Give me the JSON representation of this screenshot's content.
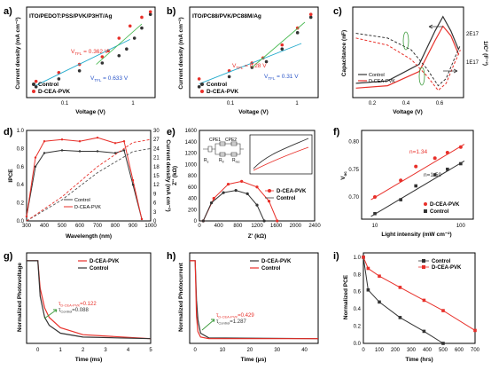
{
  "colors": {
    "control": "#333333",
    "cea": "#e8302a",
    "green": "#3a9a3a",
    "cyan": "#22aacc",
    "blue": "#2a55c8",
    "green2": "#4dbb55"
  },
  "panels": {
    "a": {
      "letter": "a)",
      "label": "ITO/PEDOT:PSS/PVK/P3HT/Ag",
      "xlabel": "Voltage (V)",
      "ylabel": "Current density (mA cm⁻²)",
      "v1": "V",
      "v1sub": "TFL",
      "v1val": " = 0.362 V",
      "v2": "V",
      "v2sub": "TFL",
      "v2val": " = 0.633 V",
      "legend": [
        "Control",
        "D-CEA-PVK"
      ],
      "ticks": [
        "0.1",
        "1"
      ]
    },
    "b": {
      "letter": "b)",
      "label": "ITO/PC88/PVK/PC88M/Ag",
      "xlabel": "Voltage (V)",
      "ylabel": "Current density (mA cm⁻²)",
      "v1": "V",
      "v1sub": "TFL",
      "v1val": " = 0.28 V",
      "v2": "V",
      "v2sub": "TFL",
      "v2val": " = 0.31 V",
      "legend": [
        "Control",
        "D-CEA-PVK"
      ],
      "ticks": [
        "0.1",
        "1"
      ]
    },
    "c": {
      "letter": "c)",
      "xlabel": "Voltage (V)",
      "ylabel": "Capacitance (nF)",
      "y2label": "1/C² (F⁻²)",
      "legend": [
        "Control",
        "D-CEA-PVK"
      ],
      "xticks": [
        "0.2",
        "0.4",
        "0.6"
      ],
      "y2ticks": [
        "2E17",
        "1E17"
      ]
    },
    "d": {
      "letter": "d)",
      "xlabel": "Wavelength (nm)",
      "ylabel": "IPCE",
      "y2label": "Current density (mA cm⁻²)",
      "legend": [
        "Control",
        "D-CEA-PVK"
      ],
      "xticks": [
        "300",
        "400",
        "500",
        "600",
        "700",
        "800",
        "900",
        "1000"
      ],
      "yticks": [
        "0.0",
        "0.2",
        "0.4",
        "0.6",
        "0.8",
        "1.0"
      ],
      "y2ticks": [
        "0",
        "3",
        "6",
        "9",
        "12",
        "15",
        "18",
        "21",
        "24",
        "27",
        "30"
      ]
    },
    "e": {
      "letter": "e)",
      "xlabel": "Z' (kΩ)",
      "ylabel": "Z'' (kΩ)",
      "legend": [
        "D-CEA-PVK",
        "Control"
      ],
      "xticks": [
        "0",
        "400",
        "800",
        "1200",
        "1600",
        "2000",
        "2400"
      ],
      "yticks": [
        "0",
        "200",
        "400",
        "600",
        "800",
        "1000",
        "1200",
        "1400",
        "1600"
      ],
      "circuit": {
        "cpe1": "CPE1",
        "cpe2": "CPE2",
        "rs": "R",
        "rssub": "s",
        "rtr": "R",
        "rtrsub": "tr",
        "rrec": "R",
        "rrecsub": "rec"
      }
    },
    "f": {
      "letter": "f)",
      "xlabel": "Light intensity (mW cm⁻²)",
      "ylabel": "V",
      "ylabelsub": "oc",
      "legend": [
        "D-CEA-PVK",
        "Control"
      ],
      "n1": "n=1.34",
      "n2": "n=1.59",
      "xticks": [
        "10",
        "100"
      ],
      "yticks": [
        "0.70",
        "0.75",
        "0.80"
      ]
    },
    "g": {
      "letter": "g)",
      "xlabel": "Time (ms)",
      "ylabel": "Normalized Photovoltage",
      "legend": [
        "D-CEA-PVK",
        "Control"
      ],
      "tau1": "τ",
      "tau1sub": "D-CEA-PVK",
      "tau1val": "=0.122",
      "tau2": "τ",
      "tau2sub": "Control",
      "tau2val": "=0.088",
      "xticks": [
        "0",
        "1",
        "2",
        "3",
        "4",
        "5"
      ]
    },
    "h": {
      "letter": "h)",
      "xlabel": "Time (μs)",
      "ylabel": "Normalized Photocurrent",
      "legend": [
        "D-CEA-PVK",
        "Control"
      ],
      "tau1": "τ",
      "tau1sub": "D-CEA-PVK",
      "tau1val": "=0.429",
      "tau2": "τ",
      "tau2sub": "Control",
      "tau2val": "=1.287",
      "xticks": [
        "0",
        "10",
        "20",
        "30",
        "40"
      ]
    },
    "i": {
      "letter": "i)",
      "xlabel": "Time (hrs)",
      "ylabel": "Normalized PCE",
      "legend": [
        "Control",
        "D-CEA-PVK"
      ],
      "xticks": [
        "0",
        "100",
        "200",
        "300",
        "400",
        "500",
        "600",
        "700"
      ],
      "yticks": [
        "0.0",
        "0.2",
        "0.4",
        "0.6",
        "0.8",
        "1.0"
      ]
    }
  },
  "chart_data": [
    {
      "type": "scatter",
      "title": "ITO/PEDOT:PSS/PVK/P3HT/Ag",
      "xlabel": "Voltage (V)",
      "ylabel": "Current density (mA cm⁻²)",
      "xscale": "log",
      "series": [
        {
          "name": "Control",
          "x": [
            0.04,
            0.08,
            0.15,
            0.3,
            0.5,
            0.63,
            0.8,
            1.0,
            1.3
          ],
          "y": [
            1,
            1.3,
            1.7,
            2.2,
            2.8,
            3.5,
            5,
            7,
            11
          ]
        },
        {
          "name": "D-CEA-PVK",
          "x": [
            0.04,
            0.08,
            0.15,
            0.3,
            0.36,
            0.5,
            0.7,
            1.0,
            1.3
          ],
          "y": [
            1.2,
            1.6,
            2.1,
            2.7,
            3.3,
            5,
            7.5,
            10,
            12
          ]
        }
      ]
    },
    {
      "type": "scatter",
      "title": "ITO/PC88/PVK/PC88M/Ag",
      "xlabel": "Voltage (V)",
      "ylabel": "Current density (mA cm⁻²)",
      "xscale": "log",
      "series": [
        {
          "name": "Control",
          "x": [
            0.04,
            0.1,
            0.2,
            0.31,
            0.5,
            0.8,
            1.2
          ],
          "y": [
            1,
            1.4,
            1.9,
            2.3,
            3.5,
            6,
            10
          ]
        },
        {
          "name": "D-CEA-PVK",
          "x": [
            0.04,
            0.1,
            0.2,
            0.28,
            0.5,
            0.8,
            1.2
          ],
          "y": [
            1.3,
            1.7,
            2.2,
            2.6,
            4,
            7,
            11
          ]
        }
      ]
    },
    {
      "type": "line",
      "xlabel": "Voltage (V)",
      "ylabel": "Capacitance (nF)",
      "xlim": [
        0.1,
        0.75
      ],
      "series": [
        {
          "name": "Control",
          "x": [
            0.1,
            0.3,
            0.5,
            0.6,
            0.65,
            0.7,
            0.75
          ],
          "y": [
            2.5,
            2.55,
            2.9,
            3.6,
            3.9,
            3.6,
            3.2
          ]
        },
        {
          "name": "D-CEA-PVK",
          "x": [
            0.1,
            0.3,
            0.5,
            0.6,
            0.65,
            0.7,
            0.75
          ],
          "y": [
            2.4,
            2.45,
            2.75,
            3.4,
            3.7,
            3.5,
            3.1
          ]
        }
      ]
    },
    {
      "type": "line",
      "xlabel": "Wavelength (nm)",
      "ylabel": "IPCE",
      "xlim": [
        300,
        1000
      ],
      "ylim": [
        0,
        1.0
      ],
      "series": [
        {
          "name": "Control",
          "x": [
            300,
            350,
            400,
            500,
            600,
            700,
            800,
            850,
            900,
            950
          ],
          "y": [
            0.05,
            0.6,
            0.75,
            0.78,
            0.77,
            0.77,
            0.75,
            0.78,
            0.4,
            0.02
          ]
        },
        {
          "name": "D-CEA-PVK",
          "x": [
            300,
            350,
            400,
            500,
            600,
            700,
            800,
            850,
            900,
            950
          ],
          "y": [
            0.05,
            0.7,
            0.88,
            0.9,
            0.88,
            0.92,
            0.86,
            0.88,
            0.45,
            0.02
          ]
        }
      ]
    },
    {
      "type": "scatter",
      "xlabel": "Z' (kΩ)",
      "ylabel": "Z'' (kΩ)",
      "xlim": [
        0,
        2400
      ],
      "ylim": [
        0,
        1600
      ],
      "series": [
        {
          "name": "D-CEA-PVK",
          "x": [
            80,
            300,
            600,
            880,
            1200,
            1450,
            1620
          ],
          "y": [
            0,
            400,
            650,
            700,
            600,
            350,
            0
          ]
        },
        {
          "name": "Control",
          "x": [
            80,
            250,
            500,
            760,
            1000,
            1200,
            1350
          ],
          "y": [
            0,
            320,
            500,
            540,
            480,
            280,
            0
          ]
        }
      ]
    },
    {
      "type": "scatter",
      "xlabel": "Light intensity (mW cm⁻²)",
      "ylabel": "Voc",
      "xscale": "log",
      "ylim": [
        0.66,
        0.82
      ],
      "series": [
        {
          "name": "D-CEA-PVK",
          "x": [
            10,
            20,
            30,
            50,
            70,
            100
          ],
          "y": [
            0.7,
            0.73,
            0.755,
            0.77,
            0.78,
            0.79
          ]
        },
        {
          "name": "Control",
          "x": [
            10,
            20,
            30,
            50,
            70,
            100
          ],
          "y": [
            0.67,
            0.695,
            0.72,
            0.74,
            0.75,
            0.76
          ]
        }
      ]
    },
    {
      "type": "line",
      "xlabel": "Time (ms)",
      "ylabel": "Normalized Photovoltage",
      "xlim": [
        -0.5,
        5
      ],
      "series": [
        {
          "name": "D-CEA-PVK",
          "x": [
            0,
            0.1,
            0.3,
            0.5,
            1,
            2,
            5
          ],
          "y": [
            1,
            0.65,
            0.4,
            0.28,
            0.15,
            0.06,
            0.01
          ]
        },
        {
          "name": "Control",
          "x": [
            0,
            0.1,
            0.3,
            0.5,
            1,
            2,
            5
          ],
          "y": [
            1,
            0.55,
            0.28,
            0.18,
            0.08,
            0.03,
            0.01
          ]
        }
      ]
    },
    {
      "type": "line",
      "xlabel": "Time (μs)",
      "ylabel": "Normalized Photocurrent",
      "xlim": [
        -2,
        45
      ],
      "series": [
        {
          "name": "D-CEA-PVK",
          "x": [
            0,
            0.5,
            1,
            2,
            5,
            45
          ],
          "y": [
            1,
            0.3,
            0.1,
            0.03,
            0.01,
            0.01
          ]
        },
        {
          "name": "Control",
          "x": [
            0,
            0.5,
            1,
            2,
            5,
            45
          ],
          "y": [
            1,
            0.5,
            0.25,
            0.08,
            0.02,
            0.01
          ]
        }
      ]
    },
    {
      "type": "line",
      "xlabel": "Time (hrs)",
      "ylabel": "Normalized PCE",
      "xlim": [
        0,
        700
      ],
      "ylim": [
        0,
        1.0
      ],
      "series": [
        {
          "name": "Control",
          "x": [
            0,
            30,
            100,
            230,
            380,
            500
          ],
          "y": [
            1,
            0.62,
            0.48,
            0.3,
            0.14,
            0.0
          ]
        },
        {
          "name": "D-CEA-PVK",
          "x": [
            0,
            30,
            100,
            230,
            380,
            500,
            700
          ],
          "y": [
            1,
            0.87,
            0.78,
            0.65,
            0.5,
            0.38,
            0.15
          ]
        }
      ]
    }
  ]
}
